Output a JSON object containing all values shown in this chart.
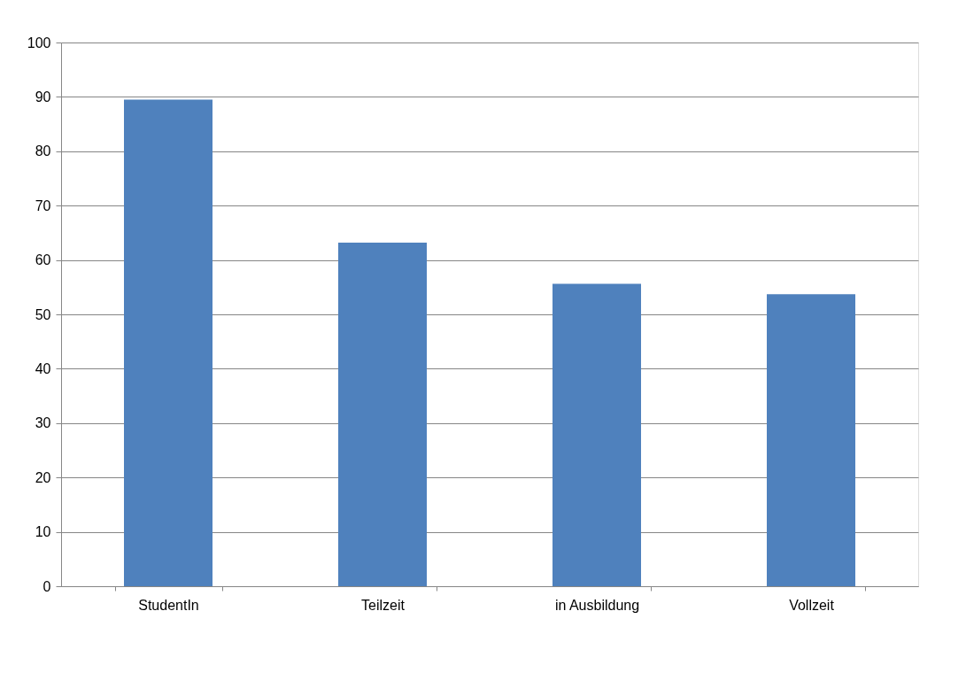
{
  "chart_data": {
    "type": "bar",
    "categories": [
      "StudentIn",
      "Teilzeit",
      "in Ausbildung",
      "Vollzeit"
    ],
    "values": [
      89.5,
      63.2,
      55.6,
      53.7
    ],
    "color": "#4f81bd",
    "ylim": [
      0,
      100
    ],
    "yticks": [
      0,
      10,
      20,
      30,
      40,
      50,
      60,
      70,
      80,
      90,
      100
    ],
    "grid": "y",
    "legend": false
  }
}
